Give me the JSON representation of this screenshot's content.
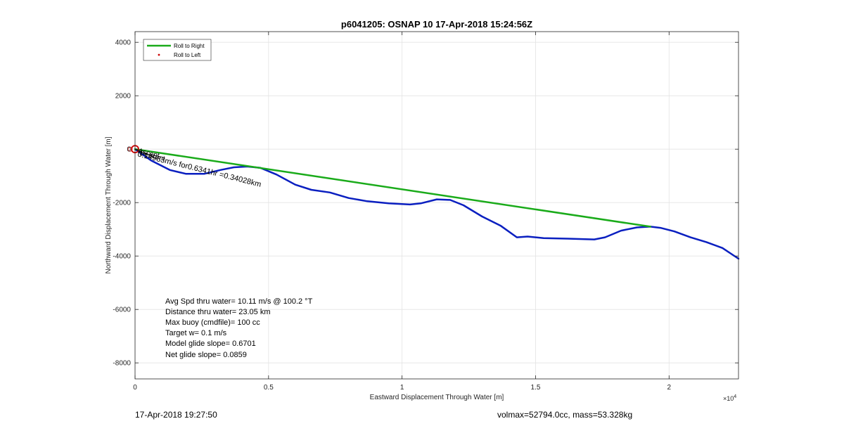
{
  "chart_data": {
    "type": "line",
    "title": "p6041205: OSNAP 10 17-Apr-2018 15:24:56Z",
    "xlabel": "Eastward Displacement Through Water [m]",
    "ylabel": "Northward Displacement Through Water [m]",
    "xlim": [
      0,
      22600
    ],
    "ylim": [
      -8600,
      4400
    ],
    "x_exponent_label": "×10",
    "x_exponent_power": "4",
    "x_ticks": [
      {
        "value": 0,
        "label": "0"
      },
      {
        "value": 5000,
        "label": "0.5"
      },
      {
        "value": 10000,
        "label": "1"
      },
      {
        "value": 15000,
        "label": "1.5"
      },
      {
        "value": 20000,
        "label": "2"
      }
    ],
    "y_ticks": [
      {
        "value": 4000,
        "label": "4000"
      },
      {
        "value": 2000,
        "label": "2000"
      },
      {
        "value": 0,
        "label": "0"
      },
      {
        "value": -2000,
        "label": "-2000"
      },
      {
        "value": -4000,
        "label": "-4000"
      },
      {
        "value": -6000,
        "label": "-6000"
      },
      {
        "value": -8000,
        "label": "-8000"
      }
    ],
    "grid": true,
    "legend": {
      "placement": "top-left",
      "entries": [
        {
          "name": "Roll to Right",
          "color": "#1aab1a",
          "style": "line"
        },
        {
          "name": "Roll to Left",
          "color": "#cc0000",
          "style": "dot"
        }
      ]
    },
    "series": [
      {
        "name": "Roll to Right",
        "color": "#1aab1a",
        "x": [
          0,
          19300
        ],
        "y": [
          0,
          -2900
        ]
      },
      {
        "name": "",
        "color": "#0a1fc0",
        "x": [
          0,
          600,
          1300,
          1900,
          2600,
          3200,
          3700,
          4200,
          4700,
          5300,
          6000,
          6600,
          7300,
          8000,
          8700,
          9500,
          10300,
          10700,
          11300,
          11800,
          12300,
          13000,
          13700,
          14300,
          14700,
          15300,
          16200,
          17200,
          17600,
          18200,
          18800,
          19300,
          19700,
          20200,
          20800,
          21400,
          22000,
          22600
        ],
        "y": [
          0,
          -420,
          -780,
          -920,
          -920,
          -780,
          -680,
          -650,
          -700,
          -950,
          -1330,
          -1520,
          -1620,
          -1830,
          -1950,
          -2030,
          -2070,
          -2030,
          -1880,
          -1900,
          -2100,
          -2520,
          -2870,
          -3300,
          -3270,
          -3330,
          -3350,
          -3380,
          -3300,
          -3050,
          -2930,
          -2900,
          -2950,
          -3080,
          -3300,
          -3480,
          -3700,
          -4100
        ]
      }
    ],
    "markers": [
      {
        "type": "start-circle",
        "x": 0,
        "y": 0,
        "color": "#cc0000"
      }
    ],
    "annotations": [
      {
        "text": "0.14983m/s for0.6341hr =0.34028km",
        "x": 0,
        "y": 0,
        "rotate": 14
      },
      {
        "text": "Ascent",
        "x": 0,
        "y": 0,
        "rotate": 14
      },
      {
        "text": "Descent",
        "x": 0,
        "y": 0,
        "rotate": 14
      }
    ],
    "stats": [
      "Avg Spd thru water= 10.11 m/s @ 100.2 °T",
      "Distance thru water= 23.05 km",
      "Max buoy (cmdfile)= 100 cc",
      "Target w= 0.1 m/s",
      "Model glide slope= 0.6701",
      "Net glide slope= 0.0859"
    ]
  },
  "footer": {
    "timestamp": "17-Apr-2018 19:27:50",
    "vol_mass": "volmax=52794.0cc, mass=53.328kg"
  }
}
